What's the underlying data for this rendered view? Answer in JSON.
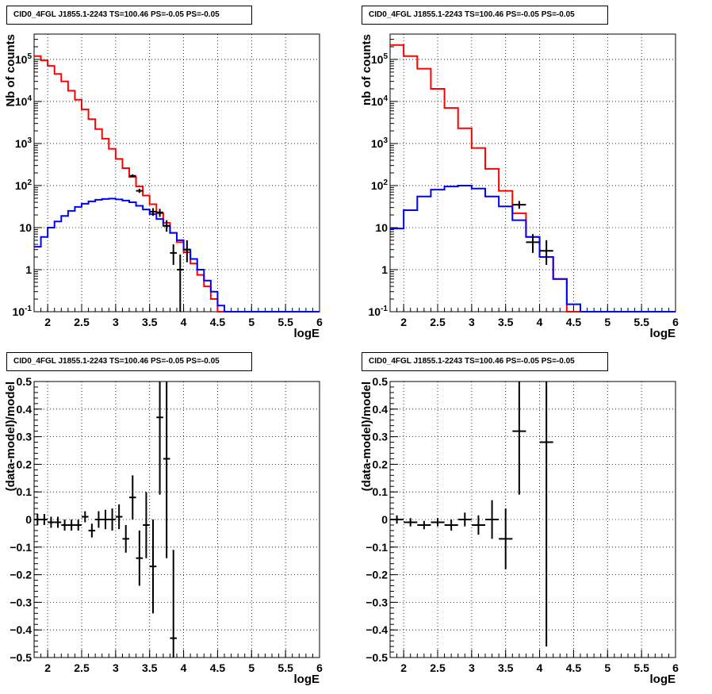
{
  "colors": {
    "data": "#000000",
    "total_model": "#ff0000",
    "source_model": "#0000ff",
    "grid": "#000000"
  },
  "chart_data": [
    {
      "type": "line",
      "title": "CID0_4FGL J1855.1-2243 TS=100.46 PS=-0.05 PS=-0.05",
      "xlabel": "logE",
      "ylabel": "Nb of counts",
      "xlim": [
        1.8,
        6.0
      ],
      "ylim": [
        0.1,
        400000
      ],
      "yscale": "log",
      "grid": true,
      "x_ticks": [
        "2",
        "2.5",
        "3",
        "3.5",
        "4",
        "4.5",
        "5",
        "5.5",
        "6"
      ],
      "y_ticks": [
        "10^{-1}",
        "1",
        "10",
        "10^{2}",
        "10^{3}",
        "10^{4}",
        "10^{5}"
      ],
      "bin_edges": [
        1.8,
        1.9,
        2.0,
        2.1,
        2.2,
        2.3,
        2.4,
        2.5,
        2.6,
        2.7,
        2.8,
        2.9,
        3.0,
        3.1,
        3.2,
        3.3,
        3.4,
        3.5,
        3.6,
        3.7,
        3.8,
        3.9,
        4.0,
        4.1,
        4.2,
        4.3,
        4.4,
        4.5,
        4.6,
        4.7,
        4.8,
        4.9,
        5.0,
        5.1,
        5.2,
        5.3,
        5.4,
        5.5,
        5.6,
        5.7,
        5.8,
        5.9,
        6.0
      ],
      "series": [
        {
          "role": "total_model",
          "values": [
            120000,
            95000,
            70000,
            45000,
            30000,
            18000,
            11000,
            6500,
            3800,
            2200,
            1300,
            750,
            430,
            260,
            160,
            95,
            58,
            36,
            22,
            13,
            7.5,
            4.5,
            2.6,
            1.4,
            0.75,
            0.4,
            0.2,
            0.1,
            0.1,
            0.1,
            0.1,
            0.1,
            0.1,
            0.1,
            0.1,
            0.1,
            0.1,
            0.1,
            0.1,
            0.1,
            0.1,
            0.1
          ]
        },
        {
          "role": "source_model",
          "values": [
            3.5,
            6,
            10,
            14,
            19,
            25,
            31,
            37,
            42,
            46,
            48,
            49,
            47,
            44,
            40,
            33,
            27,
            21,
            16,
            11,
            7.5,
            5,
            3,
            1.8,
            1.0,
            0.55,
            0.3,
            0.14,
            0.1,
            0.1,
            0.1,
            0.1,
            0.1,
            0.1,
            0.1,
            0.1,
            0.1,
            0.1,
            0.1,
            0.1,
            0.1,
            0.1
          ]
        },
        {
          "role": "data",
          "points": [
            {
              "x": 3.25,
              "y": 170,
              "lo": 160,
              "hi": 185,
              "dx": 0.05
            },
            {
              "x": 3.35,
              "y": 75,
              "lo": 67,
              "hi": 84,
              "dx": 0.05
            },
            {
              "x": 3.55,
              "y": 24,
              "lo": 19,
              "hi": 29,
              "dx": 0.05
            },
            {
              "x": 3.65,
              "y": 23,
              "lo": 18,
              "hi": 28,
              "dx": 0.05
            },
            {
              "x": 3.75,
              "y": 11,
              "lo": 8,
              "hi": 15,
              "dx": 0.05
            },
            {
              "x": 3.85,
              "y": 2.5,
              "lo": 1.3,
              "hi": 4,
              "dx": 0.05
            },
            {
              "x": 3.95,
              "y": 1,
              "lo": 0.1,
              "hi": 2.3,
              "dx": 0.05
            },
            {
              "x": 4.05,
              "y": 3,
              "lo": 1.5,
              "hi": 5,
              "dx": 0.05
            }
          ]
        }
      ]
    },
    {
      "type": "line",
      "title": "CID0_4FGL J1855.1-2243 TS=100.46 PS=-0.05 PS=-0.05",
      "xlabel": "logE",
      "ylabel": "nb of counts",
      "xlim": [
        1.8,
        6.0
      ],
      "ylim": [
        0.1,
        400000
      ],
      "yscale": "log",
      "grid": true,
      "x_ticks": [
        "2",
        "2.5",
        "3",
        "3.5",
        "4",
        "4.5",
        "5",
        "5.5",
        "6"
      ],
      "y_ticks": [
        "10^{-1}",
        "1",
        "10",
        "10^{2}",
        "10^{3}",
        "10^{4}",
        "10^{5}"
      ],
      "bin_edges": [
        1.8,
        2.0,
        2.2,
        2.4,
        2.6,
        2.8,
        3.0,
        3.2,
        3.4,
        3.6,
        3.8,
        4.0,
        4.2,
        4.4,
        4.6,
        4.8,
        5.0,
        5.2,
        5.4,
        5.6,
        5.8,
        6.0
      ],
      "series": [
        {
          "role": "total_model",
          "values": [
            220000,
            120000,
            60000,
            20000,
            7000,
            2300,
            780,
            250,
            75,
            22,
            6,
            2,
            0.6,
            0.1,
            0.1,
            0.1,
            0.1,
            0.1,
            0.1,
            0.1,
            0.1
          ]
        },
        {
          "role": "source_model",
          "values": [
            9.5,
            26,
            55,
            80,
            95,
            100,
            85,
            55,
            32,
            15,
            6,
            2,
            0.6,
            0.15,
            0.1,
            0.1,
            0.1,
            0.1,
            0.1,
            0.1,
            0.1
          ]
        },
        {
          "role": "data",
          "points": [
            {
              "x": 3.7,
              "y": 35,
              "lo": 28,
              "hi": 43,
              "dx": 0.1
            },
            {
              "x": 3.9,
              "y": 4.5,
              "lo": 2.5,
              "hi": 7,
              "dx": 0.1
            },
            {
              "x": 4.1,
              "y": 2.8,
              "lo": 1.3,
              "hi": 5,
              "dx": 0.1
            }
          ]
        }
      ]
    },
    {
      "type": "scatter",
      "title": "CID0_4FGL J1855.1-2243 TS=100.46 PS=-0.05 PS=-0.05",
      "xlabel": "logE",
      "ylabel": "(data-model)/model",
      "xlim": [
        1.8,
        6.0
      ],
      "ylim": [
        -0.5,
        0.5
      ],
      "grid": true,
      "x_ticks": [
        "2",
        "2.5",
        "3",
        "3.5",
        "4",
        "4.5",
        "5",
        "5.5",
        "6"
      ],
      "y_ticks": [
        "−0.5",
        "−0.4",
        "−0.3",
        "−0.2",
        "−0.1",
        "0",
        "0.1",
        "0.2",
        "0.3",
        "0.4",
        "0.5"
      ],
      "points": [
        {
          "x": 1.85,
          "y": 0.0,
          "err": 0.02,
          "dx": 0.05
        },
        {
          "x": 1.95,
          "y": 0.0,
          "err": 0.02,
          "dx": 0.05
        },
        {
          "x": 2.05,
          "y": -0.01,
          "err": 0.02,
          "dx": 0.05
        },
        {
          "x": 2.15,
          "y": -0.01,
          "err": 0.02,
          "dx": 0.05
        },
        {
          "x": 2.25,
          "y": -0.02,
          "err": 0.02,
          "dx": 0.05
        },
        {
          "x": 2.35,
          "y": -0.02,
          "err": 0.02,
          "dx": 0.05
        },
        {
          "x": 2.45,
          "y": -0.02,
          "err": 0.02,
          "dx": 0.05
        },
        {
          "x": 2.55,
          "y": 0.01,
          "err": 0.02,
          "dx": 0.05
        },
        {
          "x": 2.65,
          "y": -0.04,
          "err": 0.025,
          "dx": 0.05
        },
        {
          "x": 2.75,
          "y": 0.0,
          "err": 0.03,
          "dx": 0.05
        },
        {
          "x": 2.85,
          "y": 0.0,
          "err": 0.035,
          "dx": 0.05
        },
        {
          "x": 2.95,
          "y": 0.0,
          "err": 0.04,
          "dx": 0.05
        },
        {
          "x": 3.05,
          "y": 0.01,
          "err": 0.045,
          "dx": 0.05
        },
        {
          "x": 3.15,
          "y": -0.07,
          "err": 0.05,
          "dx": 0.05
        },
        {
          "x": 3.25,
          "y": 0.08,
          "err": 0.08,
          "dx": 0.05
        },
        {
          "x": 3.35,
          "y": -0.14,
          "err": 0.1,
          "dx": 0.05
        },
        {
          "x": 3.45,
          "y": -0.02,
          "err": 0.12,
          "dx": 0.05
        },
        {
          "x": 3.55,
          "y": -0.17,
          "err": 0.17,
          "dx": 0.05
        },
        {
          "x": 3.65,
          "y": 0.37,
          "err": 0.28,
          "dx": 0.05
        },
        {
          "x": 3.75,
          "y": 0.22,
          "err": 0.36,
          "dx": 0.05
        },
        {
          "x": 3.85,
          "y": -0.43,
          "err": 0.32,
          "dx": 0.05
        }
      ]
    },
    {
      "type": "scatter",
      "title": "CID0_4FGL J1855.1-2243 TS=100.46 PS=-0.05 PS=-0.05",
      "xlabel": "logE",
      "ylabel": "(data-model)/model",
      "xlim": [
        1.8,
        6.0
      ],
      "ylim": [
        -0.5,
        0.5
      ],
      "grid": true,
      "x_ticks": [
        "2",
        "2.5",
        "3",
        "3.5",
        "4",
        "4.5",
        "5",
        "5.5",
        "6"
      ],
      "y_ticks": [
        "−0.5",
        "−0.4",
        "−0.3",
        "−0.2",
        "−0.1",
        "0",
        "0.1",
        "0.2",
        "0.3",
        "0.4",
        "0.5"
      ],
      "points": [
        {
          "x": 1.9,
          "y": 0.0,
          "err": 0.015,
          "dx": 0.1
        },
        {
          "x": 2.1,
          "y": -0.01,
          "err": 0.015,
          "dx": 0.1
        },
        {
          "x": 2.3,
          "y": -0.02,
          "err": 0.015,
          "dx": 0.1
        },
        {
          "x": 2.5,
          "y": -0.01,
          "err": 0.015,
          "dx": 0.1
        },
        {
          "x": 2.7,
          "y": -0.02,
          "err": 0.02,
          "dx": 0.1
        },
        {
          "x": 2.9,
          "y": 0.0,
          "err": 0.025,
          "dx": 0.1
        },
        {
          "x": 3.1,
          "y": -0.02,
          "err": 0.035,
          "dx": 0.1
        },
        {
          "x": 3.3,
          "y": 0.0,
          "err": 0.07,
          "dx": 0.1
        },
        {
          "x": 3.5,
          "y": -0.07,
          "err": 0.11,
          "dx": 0.1
        },
        {
          "x": 3.7,
          "y": 0.32,
          "err": 0.23,
          "dx": 0.1
        },
        {
          "x": 4.1,
          "y": 0.28,
          "err": 0.74,
          "dx": 0.1
        }
      ]
    }
  ]
}
